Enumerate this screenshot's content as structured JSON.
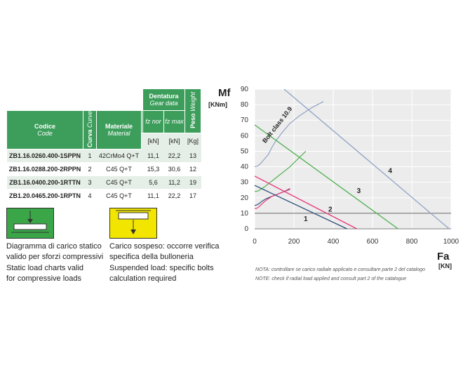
{
  "table": {
    "header": {
      "codice": "Codice",
      "code": "Code",
      "curva": "Curva",
      "curve": "Curve",
      "materiale": "Materiale",
      "material": "Material",
      "dentatura": "Dentatura",
      "gear_data": "Gear data",
      "peso": "Peso",
      "weight": "Weight",
      "fz_nor": "fz nor",
      "fz_max": "fz max",
      "unit_kn_1": "[kN]",
      "unit_kn_2": "[kN]",
      "unit_kg": "[Kg]"
    },
    "rows": [
      {
        "code": "ZB1.16.0260.400-1SPPN",
        "curve": "1",
        "material": "42CrMo4 Q+T",
        "fz_nor": "11,1",
        "fz_max": "22,2",
        "weight": "13"
      },
      {
        "code": "ZB1.16.0288.200-2RPPN",
        "curve": "2",
        "material": "C45 Q+T",
        "fz_nor": "15,3",
        "fz_max": "30,6",
        "weight": "12"
      },
      {
        "code": "ZB1.16.0400.200-1RTTN",
        "curve": "3",
        "material": "C45 Q+T",
        "fz_nor": "5,6",
        "fz_max": "11,2",
        "weight": "19"
      },
      {
        "code": "ZB1.20.0465.200-1RPTN",
        "curve": "4",
        "material": "C45 Q+T",
        "fz_nor": "11,1",
        "fz_max": "22,2",
        "weight": "17"
      }
    ]
  },
  "legend": {
    "static": {
      "it": [
        "Diagramma di carico statico",
        "valido per sforzi compressivi"
      ],
      "en": [
        "Static load charts valid",
        "for compressive loads"
      ],
      "color": "#3aa648"
    },
    "suspended": {
      "it": [
        "Carico sospeso: occorre verifica",
        "specifica della bulloneria"
      ],
      "en": [
        "Suspended load: specific bolts",
        "calculation required"
      ],
      "color": "#f2e600"
    }
  },
  "notes": {
    "it": "NOTA: controllare se carico radiale applicato e consultare parte 2 del catalogo",
    "en": "NOTE: check if radial load applied and consult part 2  of the catalogue"
  },
  "chart_data": {
    "type": "line",
    "ylabel": "Mf",
    "yunit": "[KNm]",
    "xlabel": "Fa",
    "xunit": "[KN]",
    "xlim": [
      0,
      1000
    ],
    "ylim": [
      0,
      90
    ],
    "xticks": [
      0,
      200,
      400,
      600,
      800,
      1000
    ],
    "yticks": [
      0,
      10,
      20,
      30,
      40,
      50,
      60,
      70,
      80,
      90
    ],
    "grid": true,
    "annotation": "Bolt class 10.9",
    "series": [
      {
        "name": "1",
        "color": "#2f4f7a",
        "x": [
          0,
          470
        ],
        "y": [
          28,
          0
        ],
        "label_at": [
          250,
          5
        ]
      },
      {
        "name": "2",
        "color": "#e6397a",
        "x": [
          0,
          520
        ],
        "y": [
          34,
          0
        ],
        "label_at": [
          375,
          11
        ]
      },
      {
        "name": "3",
        "color": "#4caf50",
        "x": [
          0,
          730
        ],
        "y": [
          67,
          0
        ],
        "label_at": [
          520,
          23
        ]
      },
      {
        "name": "4",
        "color": "#8fa3c4",
        "x": [
          150,
          990
        ],
        "y": [
          90,
          0
        ],
        "label_at": [
          680,
          36
        ]
      }
    ],
    "bolt_lines": [
      {
        "color": "#2f4f7a",
        "x": [
          0,
          8,
          20,
          40,
          60,
          80,
          100,
          130,
          160,
          180
        ],
        "y": [
          15,
          15.3,
          16,
          18,
          19.5,
          20.5,
          21.5,
          23,
          24.5,
          25.5
        ]
      },
      {
        "color": "#e6397a",
        "x": [
          0,
          10,
          25,
          45,
          65,
          90,
          120,
          150,
          180
        ],
        "y": [
          13,
          13.2,
          14.5,
          17,
          19,
          21,
          22.5,
          24,
          26
        ]
      },
      {
        "color": "#4caf50",
        "x": [
          0,
          20,
          50,
          80,
          110,
          150,
          180,
          220,
          260
        ],
        "y": [
          24,
          24.5,
          27,
          30,
          33,
          37,
          40,
          45,
          50
        ]
      },
      {
        "color": "#8fa3c4",
        "x": [
          0,
          15,
          30,
          50,
          70,
          90,
          110,
          140,
          180,
          230,
          290,
          350
        ],
        "y": [
          40,
          40.5,
          42,
          45,
          48,
          53,
          57,
          62,
          68,
          73,
          78,
          82
        ]
      }
    ]
  }
}
